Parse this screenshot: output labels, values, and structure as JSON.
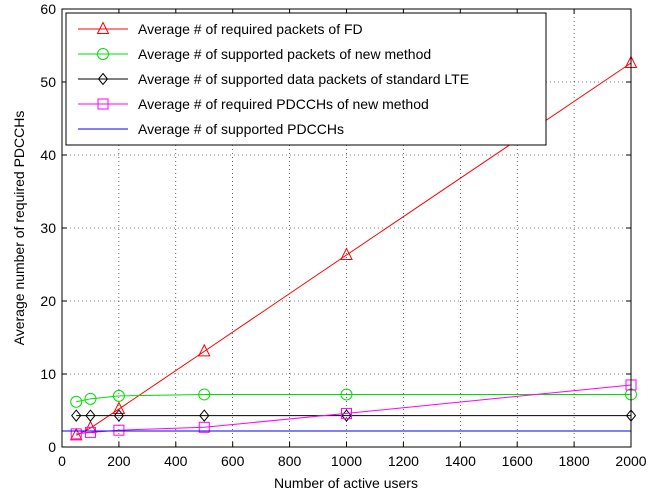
{
  "chart_data": {
    "type": "line",
    "title": "",
    "xlabel": "Number of active users",
    "ylabel": "Average number of required PDCCHs",
    "xlim": [
      0,
      2000
    ],
    "ylim": [
      0,
      60
    ],
    "xticks": [
      "0",
      "200",
      "400",
      "600",
      "800",
      "1000",
      "1200",
      "1400",
      "1600",
      "1800",
      "2000"
    ],
    "yticks": [
      "0",
      "10",
      "20",
      "30",
      "40",
      "50",
      "60"
    ],
    "grid": true,
    "legend_position": "top-left",
    "series": [
      {
        "name": "Average # of required packets of FD",
        "color": "#ff0000",
        "marker": "triangle",
        "x": [
          50,
          100,
          200,
          500,
          1000,
          2000
        ],
        "y": [
          1.6,
          2.6,
          5.2,
          13.1,
          26.3,
          52.6
        ]
      },
      {
        "name": "Average # of supported packets of new method",
        "color": "#00dd00",
        "marker": "circle",
        "x": [
          50,
          100,
          200,
          500,
          1000,
          2000
        ],
        "y": [
          6.2,
          6.6,
          7.0,
          7.2,
          7.2,
          7.2
        ]
      },
      {
        "name": "Average # of supported data packets of standard LTE",
        "color": "#000000",
        "marker": "diamond",
        "x": [
          50,
          100,
          200,
          500,
          1000,
          2000
        ],
        "y": [
          4.3,
          4.3,
          4.3,
          4.3,
          4.3,
          4.3
        ]
      },
      {
        "name": "Average # of required PDCCHs of new method",
        "color": "#ff00ff",
        "marker": "square",
        "x": [
          50,
          100,
          200,
          500,
          1000,
          2000
        ],
        "y": [
          1.8,
          2.0,
          2.3,
          2.7,
          4.6,
          8.5
        ]
      },
      {
        "name": "Average # of supported PDCCHs",
        "color": "#0000ff",
        "marker": "none",
        "x": [
          0,
          2000
        ],
        "y": [
          2.2,
          2.2
        ]
      }
    ]
  }
}
